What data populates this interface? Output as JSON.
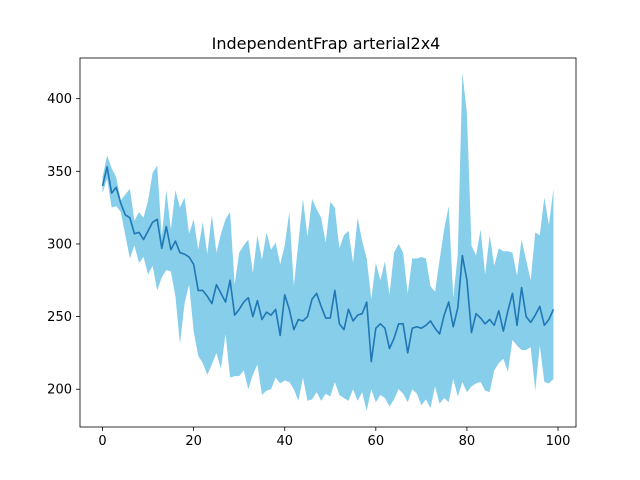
{
  "chart_data": {
    "type": "line",
    "title": "IndependentFrap arterial2x4",
    "xlabel": "",
    "ylabel": "",
    "xlim": [
      -4.95,
      103.95
    ],
    "ylim": [
      174,
      428
    ],
    "xticks": [
      0,
      20,
      40,
      60,
      80,
      100
    ],
    "yticks": [
      200,
      250,
      300,
      350,
      400
    ],
    "grid": false,
    "colors": {
      "line": "#1f77b4",
      "band": "#87ceeb"
    },
    "series": [
      {
        "kind": "mean",
        "x": [
          0,
          1,
          2,
          3,
          4,
          5,
          6,
          7,
          8,
          9,
          10,
          11,
          12,
          13,
          14,
          15,
          16,
          17,
          18,
          19,
          20,
          21,
          22,
          23,
          24,
          25,
          26,
          27,
          28,
          29,
          30,
          31,
          32,
          33,
          34,
          35,
          36,
          37,
          38,
          39,
          40,
          41,
          42,
          43,
          44,
          45,
          46,
          47,
          48,
          49,
          50,
          51,
          52,
          53,
          54,
          55,
          56,
          57,
          58,
          59,
          60,
          61,
          62,
          63,
          64,
          65,
          66,
          67,
          68,
          69,
          70,
          71,
          72,
          73,
          74,
          75,
          76,
          77,
          78,
          79,
          80,
          81,
          82,
          83,
          84,
          85,
          86,
          87,
          88,
          89,
          90,
          91,
          92,
          93,
          94,
          95,
          96,
          97,
          98,
          99
        ],
        "values": [
          340,
          353,
          335,
          339,
          328,
          320,
          318,
          307,
          308,
          303,
          309,
          315,
          317,
          297,
          312,
          296,
          302,
          294,
          293,
          291,
          286,
          268,
          268,
          264,
          259,
          272,
          266,
          260,
          275,
          251,
          255,
          260,
          263,
          250,
          261,
          248,
          253,
          251,
          255,
          237,
          265,
          255,
          241,
          248,
          247,
          250,
          262,
          266,
          257,
          249,
          249,
          268,
          245,
          241,
          255,
          247,
          251,
          252,
          260,
          219,
          242,
          245,
          242,
          228,
          235,
          245,
          245,
          225,
          242,
          243,
          242,
          244,
          247,
          242,
          238,
          251,
          260,
          243,
          256,
          292,
          275,
          239,
          252,
          249,
          245,
          248,
          244,
          254,
          240,
          254,
          266,
          244,
          270,
          250,
          246,
          251,
          257,
          244,
          248,
          255
        ]
      },
      {
        "kind": "upper",
        "x": [
          0,
          1,
          2,
          3,
          4,
          5,
          6,
          7,
          8,
          9,
          10,
          11,
          12,
          13,
          14,
          15,
          16,
          17,
          18,
          19,
          20,
          21,
          22,
          23,
          24,
          25,
          26,
          27,
          28,
          29,
          30,
          31,
          32,
          33,
          34,
          35,
          36,
          37,
          38,
          39,
          40,
          41,
          42,
          43,
          44,
          45,
          46,
          47,
          48,
          49,
          50,
          51,
          52,
          53,
          54,
          55,
          56,
          57,
          58,
          59,
          60,
          61,
          62,
          63,
          64,
          65,
          66,
          67,
          68,
          69,
          70,
          71,
          72,
          73,
          74,
          75,
          76,
          77,
          78,
          79,
          80,
          81,
          82,
          83,
          84,
          85,
          86,
          87,
          88,
          89,
          90,
          91,
          92,
          93,
          94,
          95,
          96,
          97,
          98,
          99
        ],
        "values": [
          346,
          361,
          352,
          346,
          330,
          334,
          338,
          316,
          322,
          318,
          330,
          349,
          354,
          305,
          337,
          310,
          337,
          325,
          332,
          307,
          317,
          296,
          315,
          293,
          320,
          294,
          307,
          317,
          322,
          272,
          294,
          299,
          303,
          280,
          306,
          289,
          308,
          296,
          301,
          286,
          299,
          322,
          271,
          301,
          331,
          305,
          331,
          324,
          318,
          301,
          329,
          325,
          297,
          306,
          309,
          287,
          318,
          302,
          290,
          262,
          287,
          275,
          288,
          265,
          294,
          300,
          294,
          266,
          290,
          290,
          291,
          290,
          271,
          267,
          289,
          310,
          326,
          263,
          293,
          418,
          390,
          299,
          292,
          310,
          279,
          306,
          285,
          297,
          295,
          295,
          294,
          278,
          303,
          289,
          275,
          308,
          306,
          332,
          313,
          338
        ]
      },
      {
        "kind": "lower",
        "x": [
          0,
          1,
          2,
          3,
          4,
          5,
          6,
          7,
          8,
          9,
          10,
          11,
          12,
          13,
          14,
          15,
          16,
          17,
          18,
          19,
          20,
          21,
          22,
          23,
          24,
          25,
          26,
          27,
          28,
          29,
          30,
          31,
          32,
          33,
          34,
          35,
          36,
          37,
          38,
          39,
          40,
          41,
          42,
          43,
          44,
          45,
          46,
          47,
          48,
          49,
          50,
          51,
          52,
          53,
          54,
          55,
          56,
          57,
          58,
          59,
          60,
          61,
          62,
          63,
          64,
          65,
          66,
          67,
          68,
          69,
          70,
          71,
          72,
          73,
          74,
          75,
          76,
          77,
          78,
          79,
          80,
          81,
          82,
          83,
          84,
          85,
          86,
          87,
          88,
          89,
          90,
          91,
          92,
          93,
          94,
          95,
          96,
          97,
          98,
          99
        ],
        "values": [
          335,
          345,
          325,
          326,
          322,
          306,
          290,
          299,
          287,
          291,
          279,
          285,
          268,
          277,
          282,
          281,
          264,
          231,
          259,
          272,
          240,
          223,
          218,
          210,
          217,
          225,
          214,
          238,
          208,
          209,
          209,
          213,
          200,
          210,
          217,
          196,
          199,
          200,
          208,
          204,
          206,
          205,
          200,
          192,
          208,
          192,
          193,
          198,
          192,
          197,
          195,
          205,
          196,
          194,
          192,
          200,
          192,
          198,
          185,
          200,
          191,
          196,
          194,
          188,
          193,
          200,
          197,
          191,
          200,
          197,
          189,
          193,
          187,
          202,
          190,
          194,
          191,
          207,
          195,
          205,
          198,
          202,
          204,
          205,
          199,
          198,
          213,
          218,
          221,
          212,
          234,
          230,
          227,
          227,
          229,
          199,
          230,
          205,
          204,
          207
        ]
      }
    ]
  }
}
